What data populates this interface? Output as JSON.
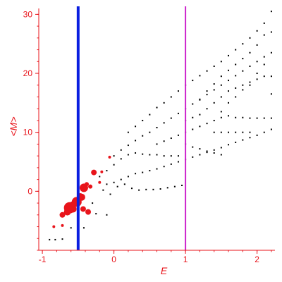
{
  "chart_data": {
    "type": "scatter",
    "title": "",
    "xlabel": "E",
    "ylabel": "<M>",
    "xlim": [
      -1.05,
      2.25
    ],
    "ylim": [
      -10,
      31
    ],
    "grid": false,
    "legend": "none",
    "xticks": [
      -1,
      0,
      1,
      2
    ],
    "yticks": [
      0,
      10,
      20,
      30
    ],
    "colors": {
      "axis": "#e8141b",
      "points": "#000000",
      "highlight": "#e8141b",
      "vline_primary": "#0a1ee0",
      "vline_secondary": "#cc22cc"
    },
    "vlines": [
      {
        "x": -0.5,
        "color": "#0a1ee0"
      },
      {
        "x": 1.0,
        "color": "#cc22cc"
      }
    ],
    "series": [
      {
        "color": "#000000",
        "points": [
          [
            -0.9,
            -8.2
          ],
          [
            -0.82,
            -8.2
          ],
          [
            -0.72,
            -8.1
          ],
          [
            -0.6,
            -6.2
          ],
          [
            -0.42,
            -6.2
          ],
          [
            -0.25,
            -3.8
          ],
          [
            -0.1,
            -4.0
          ],
          [
            -0.3,
            -2.0
          ],
          [
            -0.15,
            0.2
          ],
          [
            -0.05,
            -0.5
          ],
          [
            0.05,
            0.8
          ],
          [
            0.15,
            1.2
          ],
          [
            0.25,
            0.5
          ],
          [
            0.35,
            0.2
          ],
          [
            0.45,
            0.3
          ],
          [
            0.55,
            0.3
          ],
          [
            0.65,
            0.4
          ],
          [
            0.75,
            0.6
          ],
          [
            0.85,
            0.8
          ],
          [
            0.95,
            1.0
          ],
          [
            -0.1,
            1.2
          ],
          [
            0.0,
            1.5
          ],
          [
            0.1,
            2.0
          ],
          [
            0.2,
            2.5
          ],
          [
            0.3,
            3.0
          ],
          [
            0.4,
            3.2
          ],
          [
            0.5,
            3.5
          ],
          [
            0.6,
            3.8
          ],
          [
            0.7,
            4.2
          ],
          [
            0.8,
            4.6
          ],
          [
            0.9,
            5.0
          ],
          [
            1.0,
            5.4
          ],
          [
            1.1,
            5.8
          ],
          [
            1.2,
            6.2
          ],
          [
            1.3,
            6.6
          ],
          [
            1.4,
            7.0
          ],
          [
            1.5,
            7.4
          ],
          [
            1.6,
            7.9
          ],
          [
            1.7,
            8.3
          ],
          [
            1.8,
            8.7
          ],
          [
            1.9,
            9.1
          ],
          [
            2.0,
            9.5
          ],
          [
            2.1,
            10.0
          ],
          [
            2.2,
            10.5
          ],
          [
            -0.2,
            2.5
          ],
          [
            -0.1,
            3.5
          ],
          [
            0.0,
            4.5
          ],
          [
            0.1,
            5.5
          ],
          [
            0.2,
            6.2
          ],
          [
            0.3,
            6.5
          ],
          [
            0.4,
            6.3
          ],
          [
            0.5,
            6.2
          ],
          [
            0.6,
            6.2
          ],
          [
            0.7,
            6.0
          ],
          [
            0.8,
            6.0
          ],
          [
            0.9,
            6.0
          ],
          [
            0.0,
            6.0
          ],
          [
            0.1,
            7.0
          ],
          [
            0.2,
            7.8
          ],
          [
            0.3,
            8.6
          ],
          [
            0.4,
            9.4
          ],
          [
            0.5,
            10.0
          ],
          [
            0.6,
            10.8
          ],
          [
            0.7,
            11.6
          ],
          [
            0.8,
            12.4
          ],
          [
            0.9,
            13.2
          ],
          [
            1.0,
            14.0
          ],
          [
            1.1,
            14.8
          ],
          [
            1.2,
            15.6
          ],
          [
            1.3,
            16.4
          ],
          [
            1.4,
            17.2
          ],
          [
            1.5,
            18.0
          ],
          [
            1.6,
            18.8
          ],
          [
            1.7,
            19.6
          ],
          [
            1.8,
            20.4
          ],
          [
            1.9,
            21.2
          ],
          [
            2.0,
            22.0
          ],
          [
            2.1,
            22.8
          ],
          [
            2.2,
            23.5
          ],
          [
            0.2,
            10.0
          ],
          [
            0.3,
            11.0
          ],
          [
            0.4,
            12.0
          ],
          [
            0.5,
            13.0
          ],
          [
            0.6,
            14.2
          ],
          [
            0.7,
            15.0
          ],
          [
            0.8,
            16.0
          ],
          [
            0.9,
            17.0
          ],
          [
            1.0,
            18.0
          ],
          [
            1.1,
            18.8
          ],
          [
            1.2,
            19.6
          ],
          [
            1.3,
            20.4
          ],
          [
            1.4,
            21.2
          ],
          [
            1.5,
            22.0
          ],
          [
            1.6,
            23.0
          ],
          [
            1.7,
            24.0
          ],
          [
            1.8,
            25.0
          ],
          [
            1.9,
            26.0
          ],
          [
            2.0,
            27.2
          ],
          [
            2.1,
            28.5
          ],
          [
            2.2,
            30.5
          ],
          [
            0.6,
            8.0
          ],
          [
            0.7,
            8.5
          ],
          [
            0.8,
            9.0
          ],
          [
            0.9,
            9.5
          ],
          [
            1.0,
            10.0
          ],
          [
            1.1,
            10.5
          ],
          [
            1.2,
            11.0
          ],
          [
            1.3,
            11.5
          ],
          [
            1.4,
            12.0
          ],
          [
            1.5,
            12.5
          ],
          [
            1.6,
            12.8
          ],
          [
            1.7,
            12.5
          ],
          [
            1.8,
            12.5
          ],
          [
            1.9,
            12.4
          ],
          [
            2.0,
            12.4
          ],
          [
            2.1,
            12.4
          ],
          [
            2.2,
            12.4
          ],
          [
            1.0,
            8.0
          ],
          [
            1.1,
            7.5
          ],
          [
            1.2,
            7.2
          ],
          [
            1.3,
            6.8
          ],
          [
            1.4,
            6.5
          ],
          [
            1.5,
            6.2
          ],
          [
            1.2,
            13.0
          ],
          [
            1.3,
            14.0
          ],
          [
            1.4,
            15.0
          ],
          [
            1.5,
            16.0
          ],
          [
            1.6,
            17.0
          ],
          [
            1.7,
            17.5
          ],
          [
            1.8,
            18.0
          ],
          [
            1.9,
            18.5
          ],
          [
            2.0,
            19.0
          ],
          [
            2.1,
            19.5
          ],
          [
            2.2,
            19.5
          ],
          [
            1.0,
            12.0
          ],
          [
            1.1,
            12.5
          ],
          [
            1.2,
            15.5
          ],
          [
            1.3,
            17.0
          ],
          [
            1.4,
            18.2
          ],
          [
            1.5,
            19.5
          ],
          [
            1.6,
            20.5
          ],
          [
            1.7,
            21.5
          ],
          [
            1.8,
            22.5
          ],
          [
            1.9,
            23.5
          ],
          [
            2.0,
            24.8
          ],
          [
            2.1,
            26.5
          ],
          [
            2.2,
            27.0
          ],
          [
            1.4,
            10.0
          ],
          [
            1.5,
            10.0
          ],
          [
            1.6,
            10.0
          ],
          [
            1.7,
            10.0
          ],
          [
            1.8,
            10.0
          ],
          [
            1.9,
            10.0
          ],
          [
            1.5,
            13.5
          ],
          [
            1.6,
            15.0
          ],
          [
            1.7,
            16.0
          ],
          [
            1.8,
            17.2
          ],
          [
            1.9,
            18.0
          ],
          [
            2.0,
            20.0
          ],
          [
            2.1,
            21.5
          ],
          [
            2.2,
            16.5
          ]
        ]
      },
      {
        "color": "#e8141b",
        "points": [
          {
            "x": -0.62,
            "y": -2.8,
            "size": 8
          },
          {
            "x": -0.57,
            "y": -3.0,
            "size": 5
          },
          {
            "x": -0.52,
            "y": -1.8,
            "size": 7
          },
          {
            "x": -0.58,
            "y": -2.2,
            "size": 4
          },
          {
            "x": -0.65,
            "y": -3.5,
            "size": 5
          },
          {
            "x": -0.72,
            "y": -4.0,
            "size": 4
          },
          {
            "x": -0.47,
            "y": -0.8,
            "size": 4
          },
          {
            "x": -0.42,
            "y": 0.6,
            "size": 6
          },
          {
            "x": -0.45,
            "y": -1.0,
            "size": 5
          },
          {
            "x": -0.43,
            "y": -3.0,
            "size": 4
          },
          {
            "x": -0.36,
            "y": -3.5,
            "size": 4
          },
          {
            "x": -0.33,
            "y": 0.8,
            "size": 3
          },
          {
            "x": -0.28,
            "y": 3.2,
            "size": 4
          },
          {
            "x": -0.2,
            "y": 1.5,
            "size": 2
          },
          {
            "x": -0.17,
            "y": 3.3,
            "size": 2
          },
          {
            "x": -0.06,
            "y": 5.8,
            "size": 2
          },
          {
            "x": -0.38,
            "y": 1.2,
            "size": 3
          },
          {
            "x": -0.84,
            "y": -6.0,
            "size": 2
          },
          {
            "x": -0.72,
            "y": -5.8,
            "size": 2
          }
        ]
      }
    ]
  }
}
